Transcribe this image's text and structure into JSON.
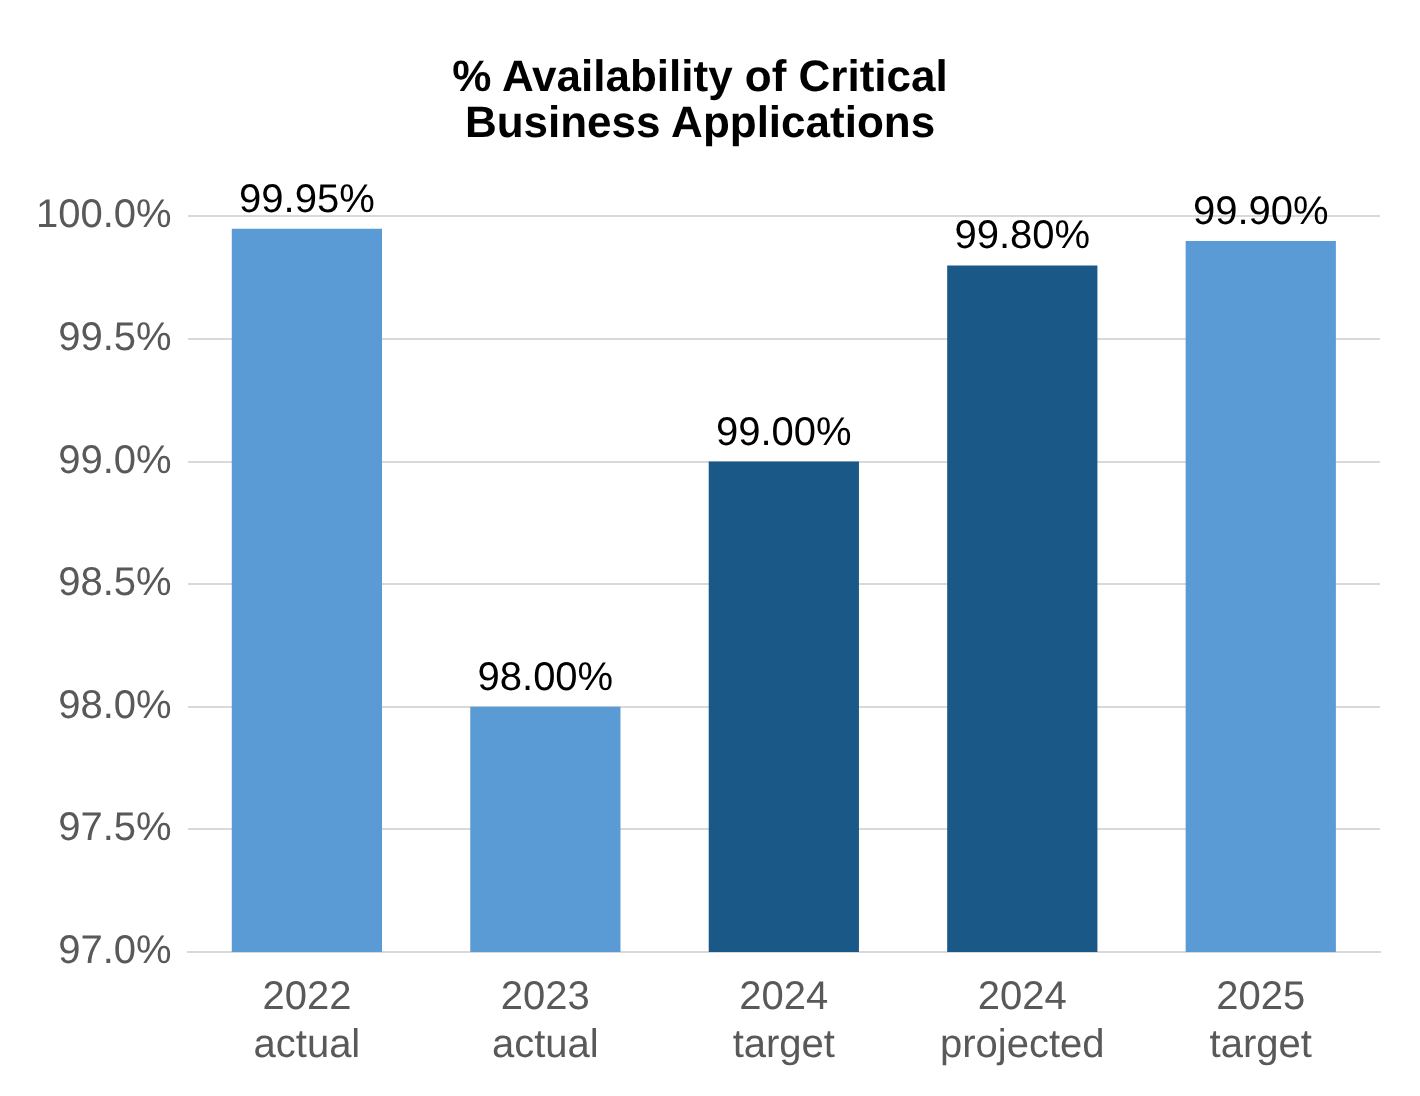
{
  "chart_data": {
    "type": "bar",
    "title": "% Availability of Critical Business Applications",
    "categories": [
      "2022 actual",
      "2023 actual",
      "2024 target",
      "2024 projected",
      "2025 target"
    ],
    "values": [
      99.95,
      98.0,
      99.0,
      99.8,
      99.9
    ],
    "colors": [
      "#5b9bd5",
      "#5b9bd5",
      "#1a5888",
      "#1a5888",
      "#5b9bd5"
    ],
    "value_labels": [
      "99.95%",
      "98.00%",
      "99.00%",
      "99.80%",
      "99.90%"
    ],
    "ylim": [
      97.0,
      100.0
    ],
    "yticks": [
      {
        "value": 97.0,
        "label": "97.0%"
      },
      {
        "value": 97.5,
        "label": "97.5%"
      },
      {
        "value": 98.0,
        "label": "98.0%"
      },
      {
        "value": 98.5,
        "label": "98.5%"
      },
      {
        "value": 99.0,
        "label": "99.0%"
      },
      {
        "value": 99.5,
        "label": "99.5%"
      },
      {
        "value": 100.0,
        "label": "100.0%"
      }
    ],
    "grid": "y",
    "legend": false
  }
}
